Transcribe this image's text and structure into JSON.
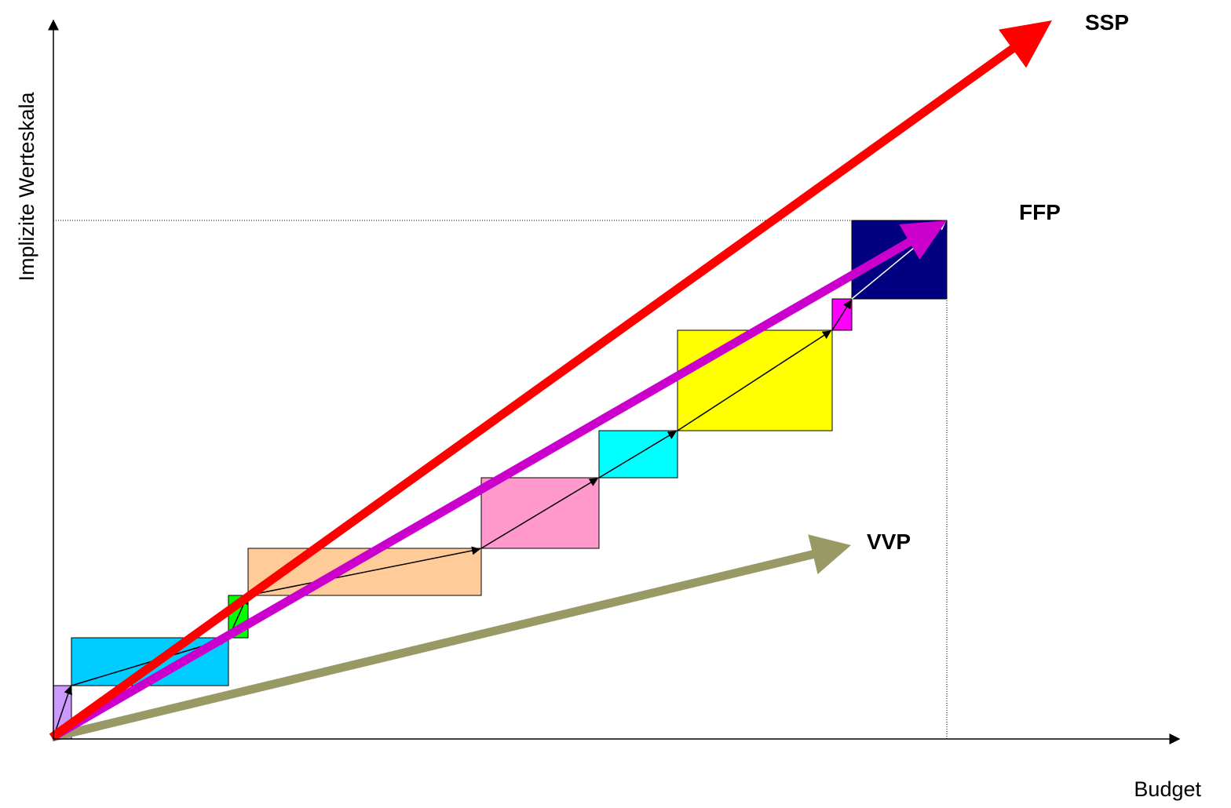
{
  "axes": {
    "x_label": "Budget",
    "y_label": "Implizite Werteskala"
  },
  "series_labels": {
    "ssp": "SSP",
    "ffp": "FFP",
    "vvp": "VVP"
  },
  "colors": {
    "ssp": "#ff0000",
    "ffp": "#cc00cc",
    "vvp": "#999966",
    "boxes": [
      "#cc99ff",
      "#00ccff",
      "#00ff00",
      "#ffcc99",
      "#ff99cc",
      "#00ffff",
      "#ffff00",
      "#ff00ff",
      "#000080"
    ]
  }
}
